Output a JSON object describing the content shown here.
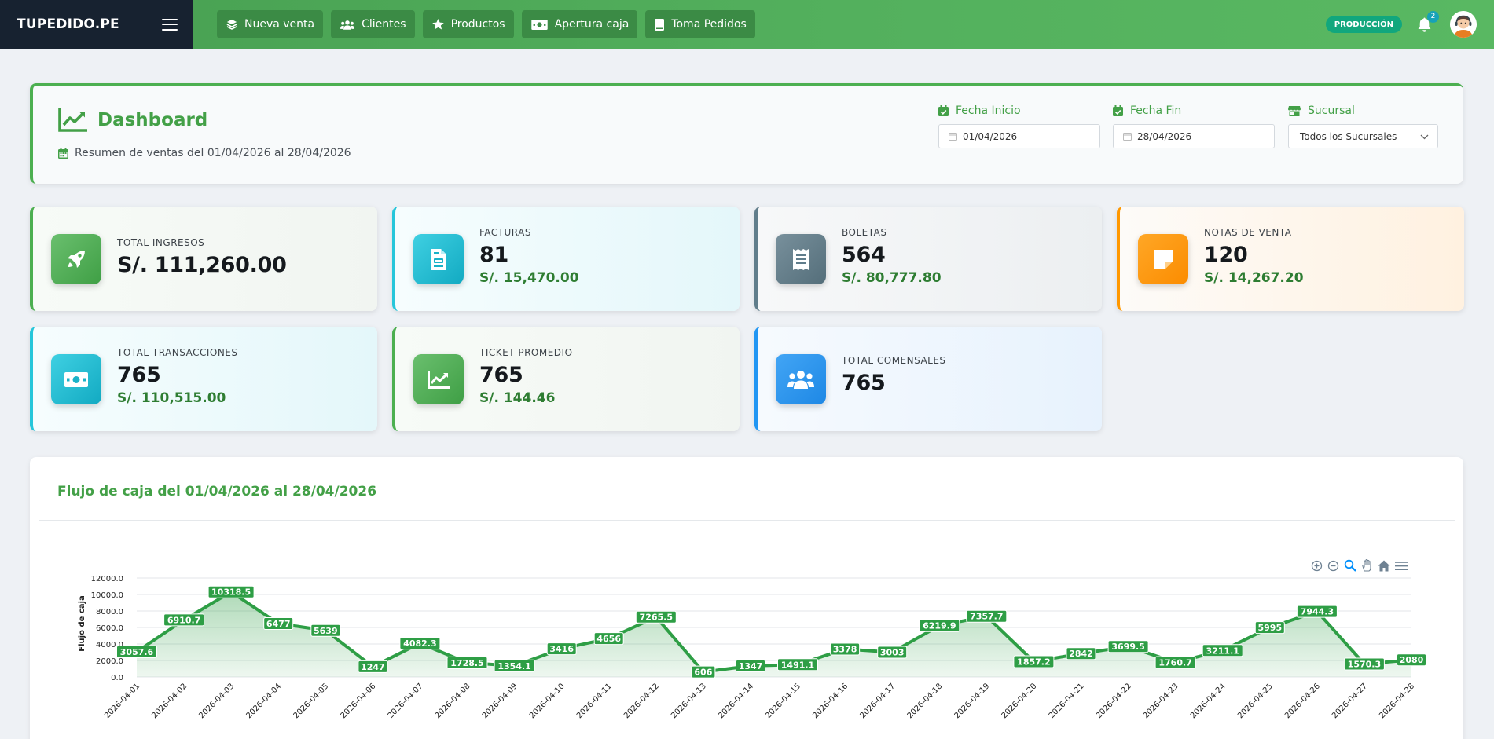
{
  "brand": "TUPEDIDO.PE",
  "nav": [
    {
      "label": "Nueva venta",
      "icon": "layers-icon"
    },
    {
      "label": "Clientes",
      "icon": "users-icon"
    },
    {
      "label": "Productos",
      "icon": "star-icon"
    },
    {
      "label": "Apertura caja",
      "icon": "money-bill-icon"
    },
    {
      "label": "Toma Pedidos",
      "icon": "book-icon"
    }
  ],
  "env_badge": "PRODUCCIÓN",
  "notifications": "2",
  "header": {
    "title": "Dashboard",
    "subtitle": "Resumen de ventas del 01/04/2026 al 28/04/2026"
  },
  "filters": {
    "start_label": "Fecha Inicio",
    "start_value": "01/04/2026",
    "end_label": "Fecha Fin",
    "end_value": "28/04/2026",
    "branch_label": "Sucursal",
    "branch_value": "Todos los Sucursales"
  },
  "stats": [
    {
      "label": "TOTAL INGRESOS",
      "value": "S/. 111,260.00",
      "amount": "",
      "icon": "rocket-icon",
      "color": "#4caf50"
    },
    {
      "label": "FACTURAS",
      "value": "81",
      "amount": "S/. 15,470.00",
      "icon": "invoice-icon",
      "color": "#26c6da"
    },
    {
      "label": "BOLETAS",
      "value": "564",
      "amount": "S/. 80,777.80",
      "icon": "receipt-icon",
      "color": "#607d8b"
    },
    {
      "label": "NOTAS DE VENTA",
      "value": "120",
      "amount": "S/. 14,267.20",
      "icon": "sticky-note-icon",
      "color": "#ff9800"
    },
    {
      "label": "TOTAL TRANSACCIONES",
      "value": "765",
      "amount": "S/. 110,515.00",
      "icon": "money-bill-icon",
      "color": "#26c6da"
    },
    {
      "label": "TICKET PROMEDIO",
      "value": "765",
      "amount": "S/. 144.46",
      "icon": "chart-line-icon",
      "color": "#4caf50"
    },
    {
      "label": "TOTAL COMENSALES",
      "value": "765",
      "amount": "",
      "icon": "users-icon",
      "color": "#2196f3"
    }
  ],
  "chart_title": "Flujo de caja del 01/04/2026 al 28/04/2026",
  "chart_data": {
    "type": "area",
    "title": "Flujo de caja del 01/04/2026 al 28/04/2026",
    "ylabel": "Flujo de caja",
    "xlabel": "",
    "ylim": [
      0,
      12000
    ],
    "yticks": [
      "0.0",
      "2000.0",
      "4000.0",
      "6000.0",
      "8000.0",
      "10000.0",
      "12000.0"
    ],
    "grid": true,
    "color": "#2e9e45",
    "x": [
      "2026-04-01",
      "2026-04-02",
      "2026-04-03",
      "2026-04-04",
      "2026-04-05",
      "2026-04-06",
      "2026-04-07",
      "2026-04-08",
      "2026-04-09",
      "2026-04-10",
      "2026-04-11",
      "2026-04-12",
      "2026-04-13",
      "2026-04-14",
      "2026-04-15",
      "2026-04-16",
      "2026-04-17",
      "2026-04-18",
      "2026-04-19",
      "2026-04-20",
      "2026-04-21",
      "2026-04-22",
      "2026-04-23",
      "2026-04-24",
      "2026-04-25",
      "2026-04-26",
      "2026-04-27",
      "2026-04-28"
    ],
    "values": [
      3057.6,
      6910.7,
      10318.5,
      6477,
      5639,
      1247,
      4082.3,
      1728.5,
      1354.1,
      3416,
      4656,
      7265.5,
      606,
      1347,
      1491.1,
      3378,
      3003,
      6219.9,
      7357.7,
      1857.2,
      2842,
      3699.5,
      1760.7,
      3211.1,
      5995,
      7944.3,
      1570.3,
      2080
    ],
    "labels": [
      "3057.6",
      "6910.7",
      "10318.5",
      "6477",
      "5639",
      "1247",
      "4082.3",
      "1728.5",
      "1354.1",
      "3416",
      "4656",
      "7265.5",
      "606",
      "1347",
      "1491.1",
      "3378",
      "3003",
      "6219.9",
      "7357.7",
      "1857.2",
      "2842",
      "3699.5",
      "1760.7",
      "3211.1",
      "5995",
      "7944.3",
      "1570.3",
      "2080"
    ]
  }
}
